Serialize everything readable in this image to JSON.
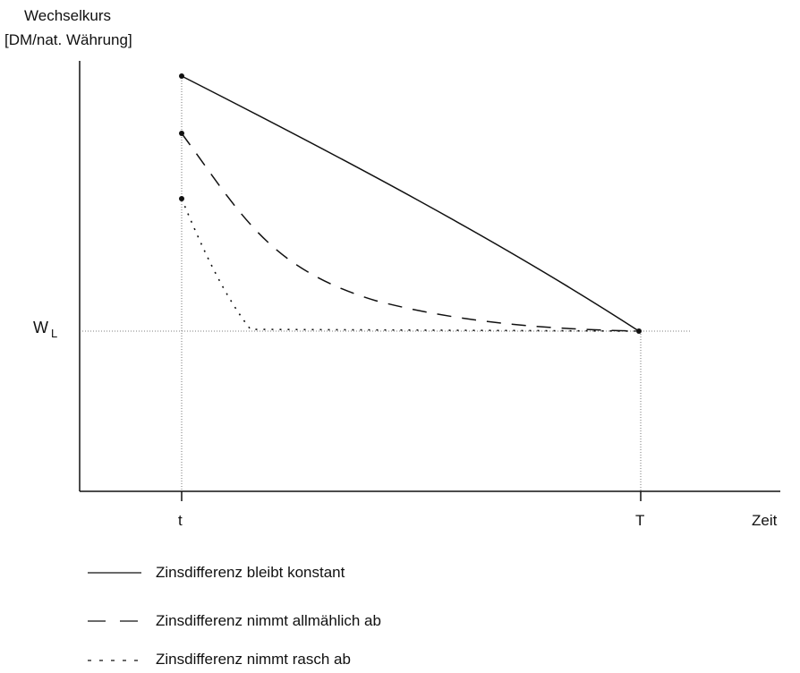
{
  "chart_data": {
    "type": "line",
    "y_axis_title": [
      "Wechselkurs",
      "[DM/nat. Währung]"
    ],
    "x_axis_title": "Zeit",
    "x_ticks": [
      "t",
      "T"
    ],
    "y_reference_label": {
      "main": "W",
      "sub": "L"
    },
    "series": [
      {
        "name": "Zinsdifferenz bleibt konstant",
        "style": "solid",
        "color": "#111111"
      },
      {
        "name": "Zinsdifferenz nimmt allmählich ab",
        "style": "dashed",
        "color": "#111111"
      },
      {
        "name": "Zinsdifferenz nimmt rasch ab",
        "style": "dotted",
        "color": "#111111"
      }
    ],
    "grid": false,
    "legend_placement": "bottom-left"
  }
}
